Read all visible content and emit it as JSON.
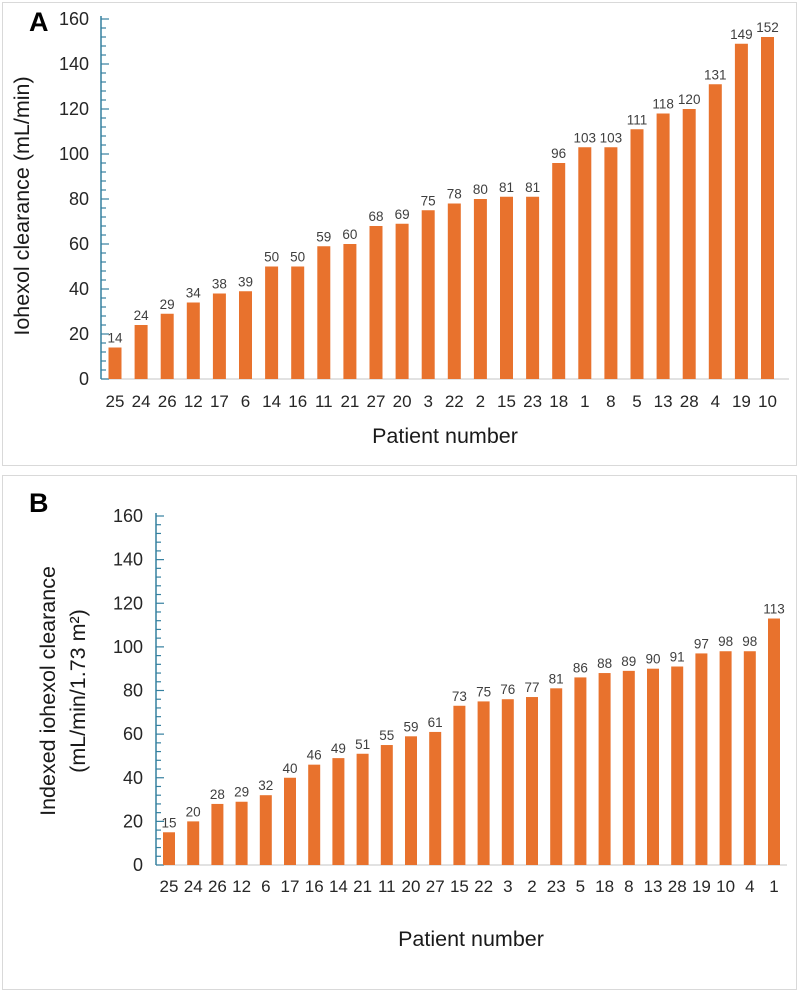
{
  "colors": {
    "bar": "#E8722D",
    "axis": "#35809F",
    "baseline": "#D9D9D9",
    "panel_border": "#D9D9D9",
    "background": "#FFFFFF"
  },
  "figure": {
    "panels": [
      {
        "letter": "A",
        "chart_data": {
          "type": "bar",
          "title": "",
          "xlabel": "Patient number",
          "ylabel": "Iohexol clearance (mL/min)",
          "ylabel_lines": [
            "Iohexol clearance (mL/min)"
          ],
          "ylim": [
            0,
            160
          ],
          "ytick_step": 20,
          "minor_tick": 4,
          "yticks": [
            0,
            20,
            40,
            60,
            80,
            100,
            120,
            140,
            160
          ],
          "grid": "off",
          "legend": "none",
          "value_labels": true,
          "categories": [
            "25",
            "24",
            "26",
            "12",
            "17",
            "6",
            "14",
            "16",
            "11",
            "21",
            "27",
            "20",
            "3",
            "22",
            "2",
            "15",
            "23",
            "18",
            "1",
            "8",
            "5",
            "13",
            "28",
            "4",
            "19",
            "10"
          ],
          "values": [
            14,
            24,
            29,
            34,
            38,
            39,
            50,
            50,
            59,
            60,
            68,
            69,
            75,
            78,
            80,
            81,
            81,
            96,
            103,
            103,
            111,
            118,
            120,
            131,
            149,
            152
          ]
        }
      },
      {
        "letter": "B",
        "chart_data": {
          "type": "bar",
          "title": "",
          "xlabel": "Patient number",
          "ylabel": "Indexed iohexol clearance (mL/min/1.73 m²)",
          "ylabel_lines": [
            "Indexed iohexol clearance",
            "(mL/min/1.73 m²)"
          ],
          "ylim": [
            0,
            160
          ],
          "ytick_step": 20,
          "minor_tick": 4,
          "yticks": [
            0,
            20,
            40,
            60,
            80,
            100,
            120,
            140,
            160
          ],
          "grid": "off",
          "legend": "none",
          "value_labels": true,
          "categories": [
            "25",
            "24",
            "26",
            "12",
            "6",
            "17",
            "16",
            "14",
            "21",
            "11",
            "20",
            "27",
            "15",
            "22",
            "3",
            "2",
            "23",
            "5",
            "18",
            "8",
            "13",
            "28",
            "19",
            "10",
            "4",
            "1"
          ],
          "values": [
            15,
            20,
            28,
            29,
            32,
            40,
            46,
            49,
            51,
            55,
            59,
            61,
            73,
            75,
            76,
            77,
            81,
            86,
            88,
            89,
            90,
            91,
            97,
            98,
            98,
            113
          ]
        }
      }
    ]
  }
}
